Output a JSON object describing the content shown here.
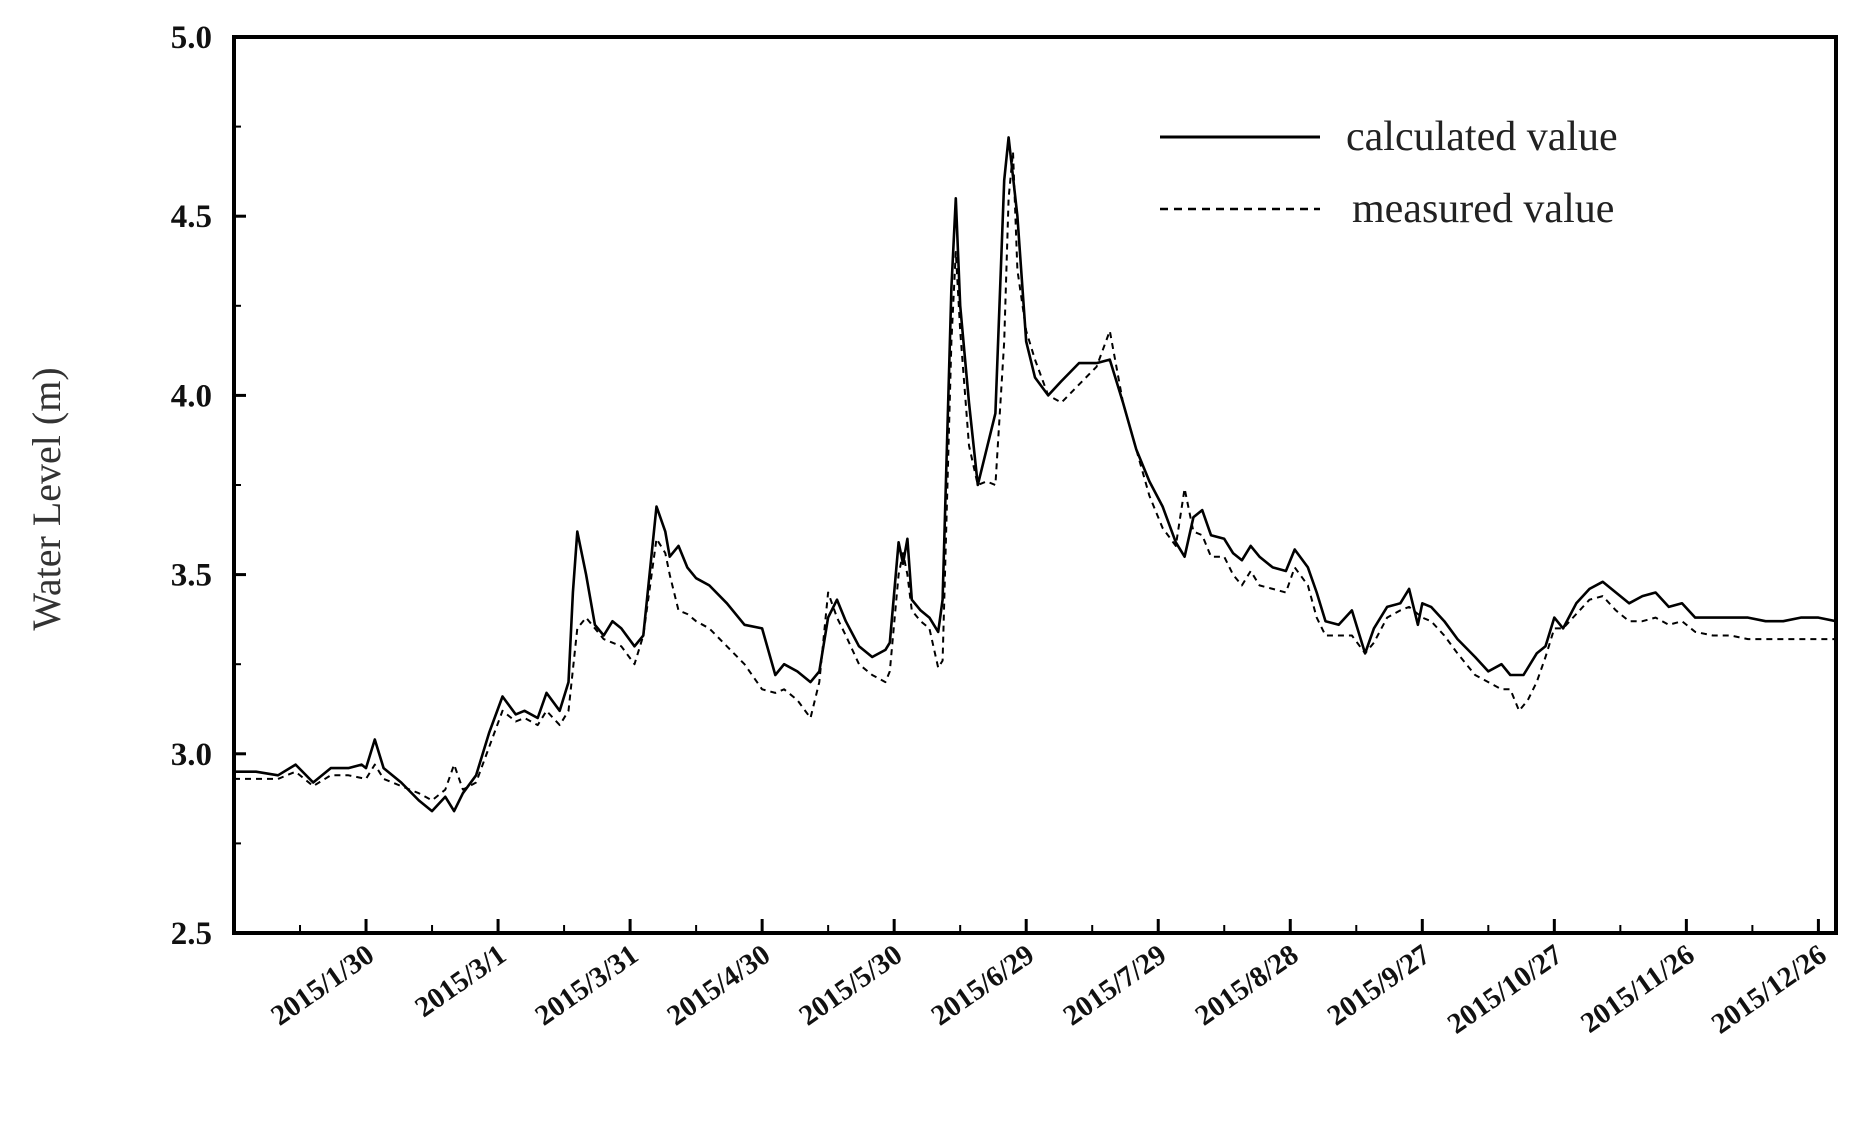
{
  "chart_data": {
    "type": "line",
    "title": "",
    "xlabel": "",
    "ylabel": "Water Level (m)",
    "ylim": [
      2.5,
      5.0
    ],
    "yticks": [
      "2.5",
      "3.0",
      "3.5",
      "4.0",
      "4.5",
      "5.0"
    ],
    "xticks": [
      {
        "label": "2015/1/30",
        "day": 30
      },
      {
        "label": "2015/3/1",
        "day": 60
      },
      {
        "label": "2015/3/31",
        "day": 90
      },
      {
        "label": "2015/4/30",
        "day": 120
      },
      {
        "label": "2015/5/30",
        "day": 150
      },
      {
        "label": "2015/6/29",
        "day": 180
      },
      {
        "label": "2015/7/29",
        "day": 210
      },
      {
        "label": "2015/8/28",
        "day": 240
      },
      {
        "label": "2015/9/27",
        "day": 270
      },
      {
        "label": "2015/10/27",
        "day": 300
      },
      {
        "label": "2015/11/26",
        "day": 330
      },
      {
        "label": "2015/12/26",
        "day": 360
      }
    ],
    "xlim_days": [
      0,
      364
    ],
    "grid": false,
    "legend_position": "top-right",
    "series": [
      {
        "name": "calculated value",
        "style": "solid",
        "color": "#000000",
        "points": [
          [
            0,
            2.95
          ],
          [
            5,
            2.95
          ],
          [
            10,
            2.94
          ],
          [
            14,
            2.97
          ],
          [
            18,
            2.92
          ],
          [
            22,
            2.96
          ],
          [
            26,
            2.96
          ],
          [
            29,
            2.97
          ],
          [
            30,
            2.96
          ],
          [
            32,
            3.04
          ],
          [
            34,
            2.96
          ],
          [
            38,
            2.92
          ],
          [
            42,
            2.87
          ],
          [
            45,
            2.84
          ],
          [
            48,
            2.88
          ],
          [
            50,
            2.84
          ],
          [
            52,
            2.89
          ],
          [
            55,
            2.94
          ],
          [
            58,
            3.06
          ],
          [
            61,
            3.16
          ],
          [
            64,
            3.11
          ],
          [
            66,
            3.12
          ],
          [
            69,
            3.1
          ],
          [
            71,
            3.17
          ],
          [
            74,
            3.12
          ],
          [
            76,
            3.2
          ],
          [
            77,
            3.45
          ],
          [
            78,
            3.62
          ],
          [
            80,
            3.5
          ],
          [
            82,
            3.36
          ],
          [
            84,
            3.33
          ],
          [
            86,
            3.37
          ],
          [
            88,
            3.35
          ],
          [
            91,
            3.3
          ],
          [
            93,
            3.33
          ],
          [
            94,
            3.45
          ],
          [
            96,
            3.69
          ],
          [
            98,
            3.62
          ],
          [
            99,
            3.55
          ],
          [
            101,
            3.58
          ],
          [
            103,
            3.52
          ],
          [
            105,
            3.49
          ],
          [
            108,
            3.47
          ],
          [
            112,
            3.42
          ],
          [
            116,
            3.36
          ],
          [
            120,
            3.35
          ],
          [
            123,
            3.22
          ],
          [
            125,
            3.25
          ],
          [
            128,
            3.23
          ],
          [
            131,
            3.2
          ],
          [
            133,
            3.23
          ],
          [
            135,
            3.38
          ],
          [
            137,
            3.43
          ],
          [
            139,
            3.37
          ],
          [
            142,
            3.3
          ],
          [
            145,
            3.27
          ],
          [
            148,
            3.29
          ],
          [
            149,
            3.31
          ],
          [
            151,
            3.59
          ],
          [
            152,
            3.53
          ],
          [
            153,
            3.6
          ],
          [
            154,
            3.43
          ],
          [
            156,
            3.4
          ],
          [
            158,
            3.38
          ],
          [
            160,
            3.34
          ],
          [
            161,
            3.43
          ],
          [
            163,
            4.3
          ],
          [
            164,
            4.55
          ],
          [
            165,
            4.25
          ],
          [
            167,
            3.98
          ],
          [
            169,
            3.75
          ],
          [
            171,
            3.85
          ],
          [
            173,
            3.95
          ],
          [
            175,
            4.6
          ],
          [
            176,
            4.72
          ],
          [
            178,
            4.5
          ],
          [
            180,
            4.15
          ],
          [
            182,
            4.05
          ],
          [
            185,
            4.0
          ],
          [
            188,
            4.04
          ],
          [
            192,
            4.09
          ],
          [
            196,
            4.09
          ],
          [
            199,
            4.1
          ],
          [
            202,
            3.98
          ],
          [
            205,
            3.85
          ],
          [
            208,
            3.76
          ],
          [
            211,
            3.69
          ],
          [
            214,
            3.59
          ],
          [
            216,
            3.55
          ],
          [
            218,
            3.66
          ],
          [
            220,
            3.68
          ],
          [
            222,
            3.61
          ],
          [
            225,
            3.6
          ],
          [
            227,
            3.56
          ],
          [
            229,
            3.54
          ],
          [
            231,
            3.58
          ],
          [
            233,
            3.55
          ],
          [
            236,
            3.52
          ],
          [
            239,
            3.51
          ],
          [
            241,
            3.57
          ],
          [
            244,
            3.52
          ],
          [
            246,
            3.45
          ],
          [
            248,
            3.37
          ],
          [
            251,
            3.36
          ],
          [
            254,
            3.4
          ],
          [
            257,
            3.28
          ],
          [
            259,
            3.35
          ],
          [
            262,
            3.41
          ],
          [
            265,
            3.42
          ],
          [
            267,
            3.46
          ],
          [
            269,
            3.36
          ],
          [
            270,
            3.42
          ],
          [
            272,
            3.41
          ],
          [
            275,
            3.37
          ],
          [
            278,
            3.32
          ],
          [
            282,
            3.27
          ],
          [
            285,
            3.23
          ],
          [
            288,
            3.25
          ],
          [
            290,
            3.22
          ],
          [
            293,
            3.22
          ],
          [
            296,
            3.28
          ],
          [
            298,
            3.3
          ],
          [
            300,
            3.38
          ],
          [
            302,
            3.35
          ],
          [
            305,
            3.42
          ],
          [
            308,
            3.46
          ],
          [
            311,
            3.48
          ],
          [
            314,
            3.45
          ],
          [
            317,
            3.42
          ],
          [
            320,
            3.44
          ],
          [
            323,
            3.45
          ],
          [
            326,
            3.41
          ],
          [
            329,
            3.42
          ],
          [
            332,
            3.38
          ],
          [
            336,
            3.38
          ],
          [
            340,
            3.38
          ],
          [
            344,
            3.38
          ],
          [
            348,
            3.37
          ],
          [
            352,
            3.37
          ],
          [
            356,
            3.38
          ],
          [
            360,
            3.38
          ],
          [
            364,
            3.37
          ]
        ]
      },
      {
        "name": "measured value",
        "style": "dashed",
        "color": "#000000",
        "points": [
          [
            0,
            2.93
          ],
          [
            5,
            2.93
          ],
          [
            10,
            2.93
          ],
          [
            14,
            2.95
          ],
          [
            18,
            2.91
          ],
          [
            22,
            2.94
          ],
          [
            26,
            2.94
          ],
          [
            30,
            2.93
          ],
          [
            32,
            2.97
          ],
          [
            34,
            2.93
          ],
          [
            38,
            2.91
          ],
          [
            42,
            2.89
          ],
          [
            45,
            2.87
          ],
          [
            48,
            2.9
          ],
          [
            50,
            2.97
          ],
          [
            52,
            2.9
          ],
          [
            55,
            2.92
          ],
          [
            58,
            3.02
          ],
          [
            61,
            3.12
          ],
          [
            64,
            3.09
          ],
          [
            66,
            3.1
          ],
          [
            69,
            3.08
          ],
          [
            71,
            3.12
          ],
          [
            74,
            3.08
          ],
          [
            76,
            3.12
          ],
          [
            78,
            3.35
          ],
          [
            80,
            3.38
          ],
          [
            82,
            3.35
          ],
          [
            84,
            3.32
          ],
          [
            86,
            3.31
          ],
          [
            88,
            3.3
          ],
          [
            91,
            3.25
          ],
          [
            93,
            3.33
          ],
          [
            94,
            3.42
          ],
          [
            96,
            3.6
          ],
          [
            98,
            3.56
          ],
          [
            99,
            3.5
          ],
          [
            101,
            3.4
          ],
          [
            103,
            3.39
          ],
          [
            105,
            3.37
          ],
          [
            108,
            3.35
          ],
          [
            112,
            3.3
          ],
          [
            116,
            3.25
          ],
          [
            120,
            3.18
          ],
          [
            123,
            3.17
          ],
          [
            125,
            3.18
          ],
          [
            128,
            3.15
          ],
          [
            131,
            3.1
          ],
          [
            133,
            3.2
          ],
          [
            135,
            3.45
          ],
          [
            137,
            3.38
          ],
          [
            139,
            3.33
          ],
          [
            142,
            3.25
          ],
          [
            145,
            3.22
          ],
          [
            148,
            3.2
          ],
          [
            149,
            3.23
          ],
          [
            151,
            3.5
          ],
          [
            152,
            3.56
          ],
          [
            153,
            3.5
          ],
          [
            154,
            3.4
          ],
          [
            156,
            3.37
          ],
          [
            158,
            3.35
          ],
          [
            160,
            3.24
          ],
          [
            161,
            3.26
          ],
          [
            163,
            4.15
          ],
          [
            164,
            4.4
          ],
          [
            165,
            4.18
          ],
          [
            167,
            3.86
          ],
          [
            169,
            3.75
          ],
          [
            171,
            3.76
          ],
          [
            173,
            3.75
          ],
          [
            175,
            4.15
          ],
          [
            176,
            4.55
          ],
          [
            177,
            4.68
          ],
          [
            178,
            4.35
          ],
          [
            180,
            4.18
          ],
          [
            182,
            4.1
          ],
          [
            185,
            4.0
          ],
          [
            188,
            3.98
          ],
          [
            192,
            4.03
          ],
          [
            196,
            4.08
          ],
          [
            199,
            4.18
          ],
          [
            202,
            3.98
          ],
          [
            205,
            3.85
          ],
          [
            208,
            3.72
          ],
          [
            211,
            3.63
          ],
          [
            214,
            3.58
          ],
          [
            216,
            3.74
          ],
          [
            218,
            3.62
          ],
          [
            220,
            3.61
          ],
          [
            222,
            3.55
          ],
          [
            225,
            3.55
          ],
          [
            227,
            3.5
          ],
          [
            229,
            3.47
          ],
          [
            231,
            3.51
          ],
          [
            233,
            3.47
          ],
          [
            236,
            3.46
          ],
          [
            239,
            3.45
          ],
          [
            241,
            3.52
          ],
          [
            244,
            3.47
          ],
          [
            246,
            3.38
          ],
          [
            248,
            3.33
          ],
          [
            251,
            3.33
          ],
          [
            254,
            3.33
          ],
          [
            257,
            3.28
          ],
          [
            259,
            3.31
          ],
          [
            262,
            3.38
          ],
          [
            265,
            3.4
          ],
          [
            267,
            3.41
          ],
          [
            269,
            3.39
          ],
          [
            270,
            3.38
          ],
          [
            272,
            3.37
          ],
          [
            275,
            3.33
          ],
          [
            278,
            3.28
          ],
          [
            282,
            3.22
          ],
          [
            285,
            3.2
          ],
          [
            288,
            3.18
          ],
          [
            290,
            3.18
          ],
          [
            292,
            3.12
          ],
          [
            294,
            3.15
          ],
          [
            296,
            3.2
          ],
          [
            298,
            3.27
          ],
          [
            300,
            3.35
          ],
          [
            302,
            3.35
          ],
          [
            305,
            3.39
          ],
          [
            308,
            3.43
          ],
          [
            311,
            3.44
          ],
          [
            314,
            3.4
          ],
          [
            317,
            3.37
          ],
          [
            320,
            3.37
          ],
          [
            323,
            3.38
          ],
          [
            326,
            3.36
          ],
          [
            329,
            3.37
          ],
          [
            332,
            3.34
          ],
          [
            336,
            3.33
          ],
          [
            340,
            3.33
          ],
          [
            344,
            3.32
          ],
          [
            348,
            3.32
          ],
          [
            352,
            3.32
          ],
          [
            356,
            3.32
          ],
          [
            360,
            3.32
          ],
          [
            364,
            3.32
          ]
        ]
      }
    ]
  }
}
